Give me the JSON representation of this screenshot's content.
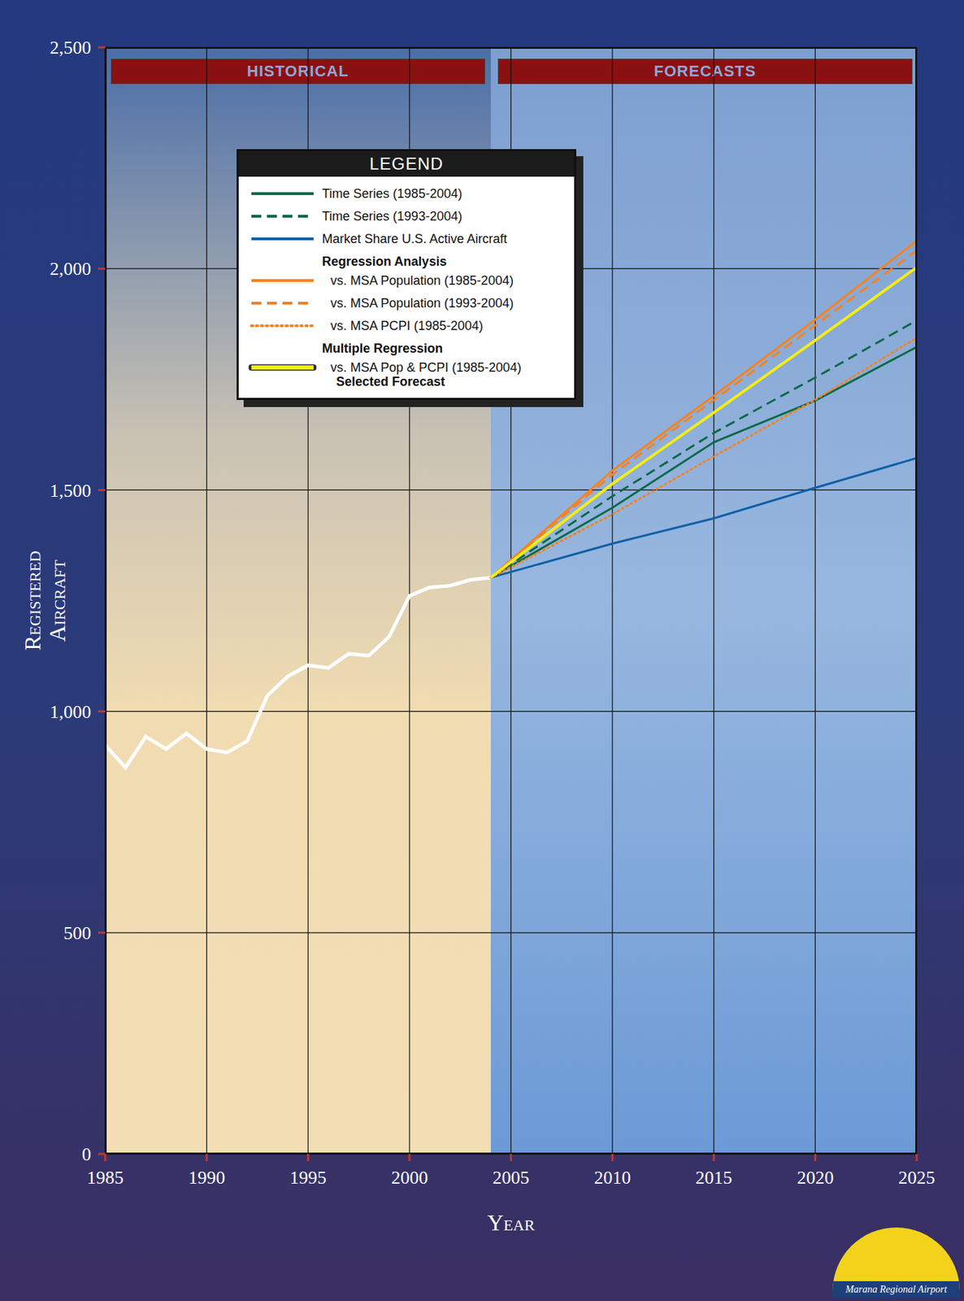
{
  "chart_data": {
    "type": "line",
    "x_label": "Year",
    "y_label": "Registered Aircraft",
    "annotations": [
      "HISTORICAL",
      "FORECASTS"
    ],
    "logo_text": "Marana Regional Airport",
    "legend_title": "LEGEND",
    "legend": "upper left",
    "grid": true,
    "x": [
      1985,
      1986,
      1987,
      1988,
      1989,
      1990,
      1991,
      1992,
      1993,
      1994,
      1995,
      1996,
      1997,
      1998,
      1999,
      2000,
      2001,
      2002,
      2003,
      2004,
      2010,
      2015,
      2020,
      2025
    ],
    "xlim": [
      1985,
      2025
    ],
    "xticks": [
      1985,
      1990,
      1995,
      2000,
      2005,
      2010,
      2015,
      2020,
      2025
    ],
    "ylim": [
      0,
      2500
    ],
    "yticks": [
      0,
      500,
      {
        "value": 1000,
        "label": "1,000"
      },
      {
        "value": 1500,
        "label": "1,500"
      },
      {
        "value": 2000,
        "label": "2,000"
      },
      {
        "value": 2500,
        "label": "2,500"
      }
    ],
    "historical": {
      "color": "#ffffff",
      "values": [
        924,
        873,
        943,
        915,
        950,
        915,
        907,
        933,
        1036,
        1079,
        1104,
        1098,
        1130,
        1126,
        1169,
        1261,
        1280,
        1284,
        1297,
        1302,
        null,
        null,
        null,
        null
      ]
    },
    "series": [
      {
        "name": "Time Series (1985-2004)",
        "color": "#0e6b4a",
        "line_style": "solid",
        "values": [
          null,
          null,
          null,
          null,
          null,
          null,
          null,
          null,
          null,
          null,
          null,
          null,
          null,
          null,
          null,
          null,
          null,
          null,
          null,
          1302,
          1460,
          1608,
          1702,
          1823
        ]
      },
      {
        "name": "Time Series (1993-2004)",
        "color": "#0e6b4a",
        "line_style": "dashed",
        "values": [
          null,
          null,
          null,
          null,
          null,
          null,
          null,
          null,
          null,
          null,
          null,
          null,
          null,
          null,
          null,
          null,
          null,
          null,
          null,
          1302,
          1486,
          1629,
          1754,
          1883
        ]
      },
      {
        "name": "Market Share U.S. Active Aircraft",
        "color": "#1060a8",
        "line_style": "solid",
        "values": [
          null,
          null,
          null,
          null,
          null,
          null,
          null,
          null,
          null,
          null,
          null,
          null,
          null,
          null,
          null,
          null,
          null,
          null,
          null,
          1302,
          1379,
          1436,
          1505,
          1572
        ]
      },
      {
        "name": "vs. MSA Population (1985-2004)",
        "group": "Regression Analysis",
        "color": "#f7821e",
        "line_style": "solid",
        "values": [
          null,
          null,
          null,
          null,
          null,
          null,
          null,
          null,
          null,
          null,
          null,
          null,
          null,
          null,
          null,
          null,
          null,
          null,
          null,
          1302,
          1544,
          1713,
          1885,
          2063
        ]
      },
      {
        "name": "vs. MSA Population (1993-2004)",
        "group": "Regression Analysis",
        "color": "#f7821e",
        "line_style": "dashed",
        "values": [
          null,
          null,
          null,
          null,
          null,
          null,
          null,
          null,
          null,
          null,
          null,
          null,
          null,
          null,
          null,
          null,
          null,
          null,
          null,
          1302,
          1535,
          1703,
          1872,
          2041
        ]
      },
      {
        "name": "vs. MSA PCPI (1985-2004)",
        "group": "Regression Analysis",
        "color": "#f7821e",
        "line_style": "dotted",
        "values": [
          null,
          null,
          null,
          null,
          null,
          null,
          null,
          null,
          null,
          null,
          null,
          null,
          null,
          null,
          null,
          null,
          null,
          null,
          null,
          1302,
          1445,
          1576,
          1704,
          1844
        ]
      },
      {
        "name": "vs. MSA Pop & PCPI (1985-2004)",
        "group": "Multiple Regression",
        "note": "Selected Forecast",
        "color": "#f5ec13",
        "line_style": "solid",
        "values": [
          null,
          null,
          null,
          null,
          null,
          null,
          null,
          null,
          null,
          null,
          null,
          null,
          null,
          null,
          null,
          null,
          null,
          null,
          null,
          1302,
          1514,
          1675,
          1838,
          2003
        ]
      }
    ]
  }
}
